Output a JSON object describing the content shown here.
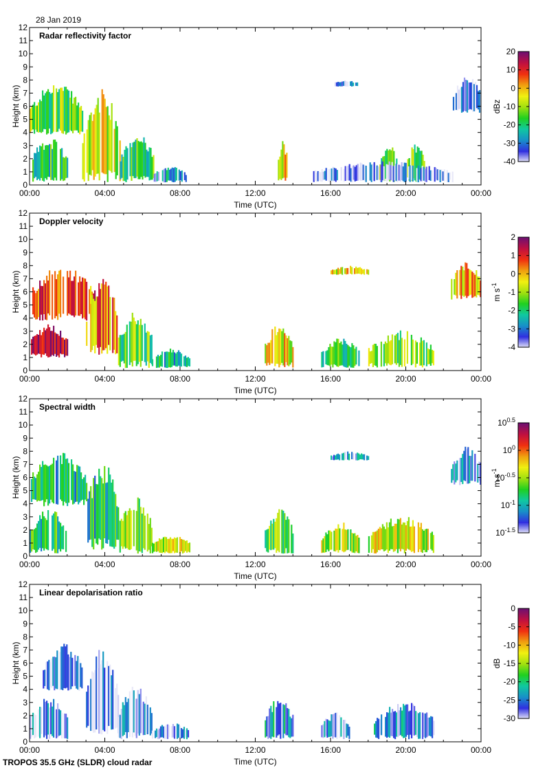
{
  "date_label": "28 Jan 2019",
  "footer": "TROPOS 35.5 GHz (SLDR) cloud radar",
  "colors": {
    "background": "#ffffff",
    "clutter_gray": "#d8d8d8",
    "colormap": [
      "#e8e8f8",
      "#3030e0",
      "#1890c8",
      "#10c8a0",
      "#20d020",
      "#a0e010",
      "#f0f010",
      "#f0a010",
      "#f03010",
      "#c01040",
      "#701070"
    ]
  },
  "chart_data": [
    {
      "type": "heatmap",
      "title": "Radar reflectivity factor",
      "xlabel": "Time (UTC)",
      "ylabel": "Height (km)",
      "xlim": [
        0,
        24
      ],
      "ylim": [
        0,
        12
      ],
      "x_ticks": [
        "00:00",
        "04:00",
        "08:00",
        "12:00",
        "16:00",
        "20:00",
        "00:00"
      ],
      "y_ticks": [
        0,
        1,
        2,
        3,
        4,
        5,
        6,
        7,
        8,
        9,
        10,
        11,
        12
      ],
      "colorbar": {
        "label": "dBz",
        "range": [
          -40,
          20
        ],
        "ticks": [
          "20",
          "10",
          "0",
          "-10",
          "-20",
          "-30",
          "-40"
        ]
      },
      "cloud_regions": [
        {
          "t0": 0.0,
          "t1": 2.8,
          "h0": 3.8,
          "h1": 7.3,
          "level": 0.45
        },
        {
          "t0": 0.0,
          "t1": 2.0,
          "h0": 0.2,
          "h1": 3.2,
          "level": 0.35
        },
        {
          "t0": 2.8,
          "t1": 4.8,
          "h0": 0.2,
          "h1": 6.4,
          "level": 0.55
        },
        {
          "t0": 4.8,
          "t1": 6.6,
          "h0": 0.2,
          "h1": 3.5,
          "level": 0.4
        },
        {
          "t0": 6.6,
          "t1": 8.3,
          "h0": 0.2,
          "h1": 1.3,
          "level": 0.2
        },
        {
          "t0": 13.2,
          "t1": 13.7,
          "h0": 0.2,
          "h1": 3.0,
          "level": 0.6
        },
        {
          "t0": 18.6,
          "t1": 19.6,
          "h0": 0.2,
          "h1": 2.7,
          "level": 0.4
        },
        {
          "t0": 20.0,
          "t1": 21.0,
          "h0": 0.2,
          "h1": 2.8,
          "level": 0.45
        },
        {
          "t0": 16.0,
          "t1": 17.6,
          "h0": 7.5,
          "h1": 7.9,
          "level": 0.15
        },
        {
          "t0": 22.5,
          "t1": 24.0,
          "h0": 5.5,
          "h1": 8.0,
          "level": 0.08
        },
        {
          "t0": 15.0,
          "t1": 22.5,
          "h0": 0.2,
          "h1": 1.6,
          "level": 0.05
        }
      ]
    },
    {
      "type": "heatmap",
      "title": "Doppler velocity",
      "xlabel": "Time (UTC)",
      "ylabel": "Height (km)",
      "xlim": [
        0,
        24
      ],
      "ylim": [
        0,
        12
      ],
      "x_ticks": [
        "00:00",
        "04:00",
        "08:00",
        "12:00",
        "16:00",
        "20:00",
        "00:00"
      ],
      "y_ticks": [
        0,
        1,
        2,
        3,
        4,
        5,
        6,
        7,
        8,
        9,
        10,
        11,
        12
      ],
      "colorbar": {
        "label": "m s-1",
        "range": [
          -4,
          2
        ],
        "ticks": [
          "2",
          "1",
          "0",
          "-1",
          "-2",
          "-3",
          "-4"
        ]
      },
      "cloud_regions": [
        {
          "t0": 0.0,
          "t1": 3.5,
          "h0": 3.8,
          "h1": 7.5,
          "level": 0.78
        },
        {
          "t0": 0.0,
          "t1": 2.0,
          "h0": 1.0,
          "h1": 3.2,
          "level": 0.92
        },
        {
          "t0": 3.0,
          "t1": 4.7,
          "h0": 1.2,
          "h1": 6.4,
          "level": 0.72
        },
        {
          "t0": 4.7,
          "t1": 6.5,
          "h0": 0.2,
          "h1": 4.0,
          "level": 0.42
        },
        {
          "t0": 6.5,
          "t1": 8.5,
          "h0": 0.2,
          "h1": 1.5,
          "level": 0.3
        },
        {
          "t0": 12.5,
          "t1": 14.0,
          "h0": 0.2,
          "h1": 3.2,
          "level": 0.6
        },
        {
          "t0": 15.5,
          "t1": 17.5,
          "h0": 0.2,
          "h1": 2.3,
          "level": 0.38
        },
        {
          "t0": 18.0,
          "t1": 21.5,
          "h0": 0.2,
          "h1": 2.7,
          "level": 0.45
        },
        {
          "t0": 16.0,
          "t1": 18.0,
          "h0": 7.3,
          "h1": 7.9,
          "level": 0.6
        },
        {
          "t0": 22.4,
          "t1": 24.0,
          "h0": 5.4,
          "h1": 8.0,
          "level": 0.65
        }
      ]
    },
    {
      "type": "heatmap",
      "title": "Spectral width",
      "xlabel": "Time (UTC)",
      "ylabel": "Height (km)",
      "xlim": [
        0,
        24
      ],
      "ylim": [
        0,
        12
      ],
      "x_ticks": [
        "00:00",
        "04:00",
        "08:00",
        "12:00",
        "16:00",
        "20:00",
        "00:00"
      ],
      "y_ticks": [
        0,
        1,
        2,
        3,
        4,
        5,
        6,
        7,
        8,
        9,
        10,
        11,
        12
      ],
      "colorbar": {
        "label": "m s-1",
        "range": [
          -1.5,
          0.5
        ],
        "ticks": [
          "10^0.5",
          "10^0",
          "10^-0.5",
          "10^-1",
          "10^-1.5"
        ]
      },
      "cloud_regions": [
        {
          "t0": 0.0,
          "t1": 3.0,
          "h0": 3.8,
          "h1": 7.5,
          "level": 0.28
        },
        {
          "t0": 0.0,
          "t1": 2.0,
          "h0": 0.2,
          "h1": 3.2,
          "level": 0.35
        },
        {
          "t0": 3.0,
          "t1": 4.7,
          "h0": 0.5,
          "h1": 6.4,
          "level": 0.3
        },
        {
          "t0": 4.7,
          "t1": 6.5,
          "h0": 0.2,
          "h1": 4.0,
          "level": 0.5
        },
        {
          "t0": 6.5,
          "t1": 8.5,
          "h0": 0.2,
          "h1": 1.5,
          "level": 0.55
        },
        {
          "t0": 12.5,
          "t1": 14.0,
          "h0": 0.2,
          "h1": 3.2,
          "level": 0.45
        },
        {
          "t0": 15.5,
          "t1": 17.5,
          "h0": 0.2,
          "h1": 2.3,
          "level": 0.5
        },
        {
          "t0": 18.0,
          "t1": 21.5,
          "h0": 0.2,
          "h1": 2.7,
          "level": 0.55
        },
        {
          "t0": 16.0,
          "t1": 18.0,
          "h0": 7.3,
          "h1": 7.9,
          "level": 0.15
        },
        {
          "t0": 22.4,
          "t1": 24.0,
          "h0": 5.4,
          "h1": 8.0,
          "level": 0.15
        }
      ]
    },
    {
      "type": "heatmap",
      "title": "Linear depolarisation ratio",
      "xlabel": "Time (UTC)",
      "ylabel": "Height (km)",
      "xlim": [
        0,
        24
      ],
      "ylim": [
        0,
        12
      ],
      "x_ticks": [
        "00:00",
        "04:00",
        "08:00",
        "12:00",
        "16:00",
        "20:00",
        "00:00"
      ],
      "y_ticks": [
        0,
        1,
        2,
        3,
        4,
        5,
        6,
        7,
        8,
        9,
        10,
        11,
        12
      ],
      "colorbar": {
        "label": "dB",
        "range": [
          -30,
          0
        ],
        "ticks": [
          "0",
          "-5",
          "-10",
          "-15",
          "-20",
          "-25",
          "-30"
        ]
      },
      "cloud_regions": [
        {
          "t0": 0.7,
          "t1": 2.8,
          "h0": 3.8,
          "h1": 7.1,
          "level": 0.06
        },
        {
          "t0": 0.0,
          "t1": 2.0,
          "h0": 0.2,
          "h1": 3.0,
          "level": 0.12
        },
        {
          "t0": 3.0,
          "t1": 4.7,
          "h0": 0.5,
          "h1": 6.4,
          "level": 0.08
        },
        {
          "t0": 4.7,
          "t1": 6.5,
          "h0": 0.2,
          "h1": 3.8,
          "level": 0.12
        },
        {
          "t0": 6.5,
          "t1": 8.5,
          "h0": 0.2,
          "h1": 1.3,
          "level": 0.1
        },
        {
          "t0": 12.5,
          "t1": 14.0,
          "h0": 0.2,
          "h1": 3.0,
          "level": 0.2
        },
        {
          "t0": 15.5,
          "t1": 17.0,
          "h0": 0.2,
          "h1": 2.0,
          "level": 0.15
        },
        {
          "t0": 18.3,
          "t1": 21.5,
          "h0": 0.2,
          "h1": 2.7,
          "level": 0.18
        }
      ]
    }
  ]
}
